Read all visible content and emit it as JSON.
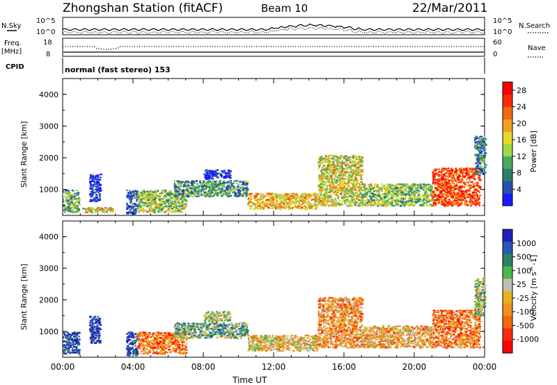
{
  "header": {
    "station": "Zhongshan Station (fitACF)",
    "beam": "Beam 10",
    "date": "22/Mar/2011"
  },
  "top_panels": {
    "nsky_label": "N.Sky",
    "nsky_tick_hi": "10^5",
    "nsky_tick_lo": "10^0",
    "nsearch_label": "N.Search",
    "nsearch_tick_hi": "10^5",
    "nsearch_tick_lo": "10^0",
    "freq_label_1": "Freq.",
    "freq_label_2": "[MHz]",
    "freq_tick_hi": "18",
    "freq_tick_lo": "8",
    "nave_label": "Nave",
    "nave_tick_hi": "60",
    "nave_tick_lo": "0",
    "cpid_label": "CPID",
    "cpid_text": "normal (fast stereo) 153"
  },
  "colors": {
    "power_scale": [
      "#1a1aff",
      "#2a4fb0",
      "#2e7d6a",
      "#4aa860",
      "#9fd84a",
      "#e8d82a",
      "#f0a020",
      "#f06a10",
      "#ff2a0a",
      "#ff0000"
    ],
    "velocity_scale": [
      "#2020c0",
      "#2a58b8",
      "#2e8060",
      "#4ab84a",
      "#bfbfaf",
      "#e8b020",
      "#f09020",
      "#f06a10",
      "#ff2a0a",
      "#ff0000"
    ]
  },
  "chart_data": [
    {
      "type": "heatmap",
      "title": "",
      "xlabel": "Time UT",
      "ylabel": "Slant Range [km]",
      "x_ticks": [
        "00:00",
        "04:00",
        "08:00",
        "12:00",
        "16:00",
        "20:00",
        "00:00"
      ],
      "y_ticks": [
        1000,
        2000,
        3000,
        4000
      ],
      "ylim": [
        180,
        4500
      ],
      "colorbar": {
        "label": "Power [dB]",
        "ticks": [
          4,
          8,
          12,
          16,
          20,
          24,
          28
        ],
        "range": [
          0,
          30
        ]
      },
      "scatter_regions": [
        {
          "t_start": 0.0,
          "t_end": 0.9,
          "r_start": 300,
          "r_end": 1000,
          "level": 0.35
        },
        {
          "t_start": 1.1,
          "t_end": 2.8,
          "r_start": 300,
          "r_end": 450,
          "level": 0.55
        },
        {
          "t_start": 1.5,
          "t_end": 2.1,
          "r_start": 650,
          "r_end": 1500,
          "level": 0.05
        },
        {
          "t_start": 3.6,
          "t_end": 4.2,
          "r_start": 250,
          "r_end": 1000,
          "level": 0.15
        },
        {
          "t_start": 4.2,
          "t_end": 7.0,
          "r_start": 300,
          "r_end": 1000,
          "level": 0.45
        },
        {
          "t_start": 6.3,
          "t_end": 10.5,
          "r_start": 800,
          "r_end": 1300,
          "level": 0.3
        },
        {
          "t_start": 8.0,
          "t_end": 9.5,
          "r_start": 1350,
          "r_end": 1650,
          "level": 0.05
        },
        {
          "t_start": 10.5,
          "t_end": 14.5,
          "r_start": 400,
          "r_end": 900,
          "level": 0.62
        },
        {
          "t_start": 14.5,
          "t_end": 17.0,
          "r_start": 500,
          "r_end": 2100,
          "level": 0.52
        },
        {
          "t_start": 17.0,
          "t_end": 21.0,
          "r_start": 500,
          "r_end": 1200,
          "level": 0.42
        },
        {
          "t_start": 21.0,
          "t_end": 23.7,
          "r_start": 500,
          "r_end": 1700,
          "level": 0.82
        },
        {
          "t_start": 23.4,
          "t_end": 24.0,
          "r_start": 1500,
          "r_end": 2700,
          "level": 0.25
        }
      ]
    },
    {
      "type": "heatmap",
      "title": "",
      "xlabel": "Time UT",
      "ylabel": "Slant Range [km]",
      "x_ticks": [
        "00:00",
        "04:00",
        "08:00",
        "12:00",
        "16:00",
        "20:00",
        "00:00"
      ],
      "y_ticks": [
        1000,
        2000,
        3000,
        4000
      ],
      "ylim": [
        180,
        4500
      ],
      "colorbar": {
        "label": "Velocity [m s^-1]",
        "ticks": [
          "1000",
          "500",
          "100",
          "25",
          "-25",
          "-100",
          "-500",
          "-1000"
        ]
      },
      "scatter_regions": [
        {
          "t_start": 0.0,
          "t_end": 0.9,
          "r_start": 300,
          "r_end": 1000,
          "level": 0.1
        },
        {
          "t_start": 1.5,
          "t_end": 2.1,
          "r_start": 650,
          "r_end": 1500,
          "level": 0.05
        },
        {
          "t_start": 3.6,
          "t_end": 4.2,
          "r_start": 250,
          "r_end": 1000,
          "level": 0.08
        },
        {
          "t_start": 4.2,
          "t_end": 7.0,
          "r_start": 300,
          "r_end": 1000,
          "level": 0.72
        },
        {
          "t_start": 6.3,
          "t_end": 10.5,
          "r_start": 800,
          "r_end": 1300,
          "level": 0.35
        },
        {
          "t_start": 8.0,
          "t_end": 9.5,
          "r_start": 1350,
          "r_end": 1650,
          "level": 0.45
        },
        {
          "t_start": 10.5,
          "t_end": 14.5,
          "r_start": 400,
          "r_end": 900,
          "level": 0.55
        },
        {
          "t_start": 14.5,
          "t_end": 17.0,
          "r_start": 500,
          "r_end": 2100,
          "level": 0.65
        },
        {
          "t_start": 17.0,
          "t_end": 21.0,
          "r_start": 500,
          "r_end": 1200,
          "level": 0.6
        },
        {
          "t_start": 21.0,
          "t_end": 23.7,
          "r_start": 500,
          "r_end": 1700,
          "level": 0.7
        },
        {
          "t_start": 23.4,
          "t_end": 24.0,
          "r_start": 1500,
          "r_end": 2700,
          "level": 0.4
        }
      ]
    }
  ]
}
